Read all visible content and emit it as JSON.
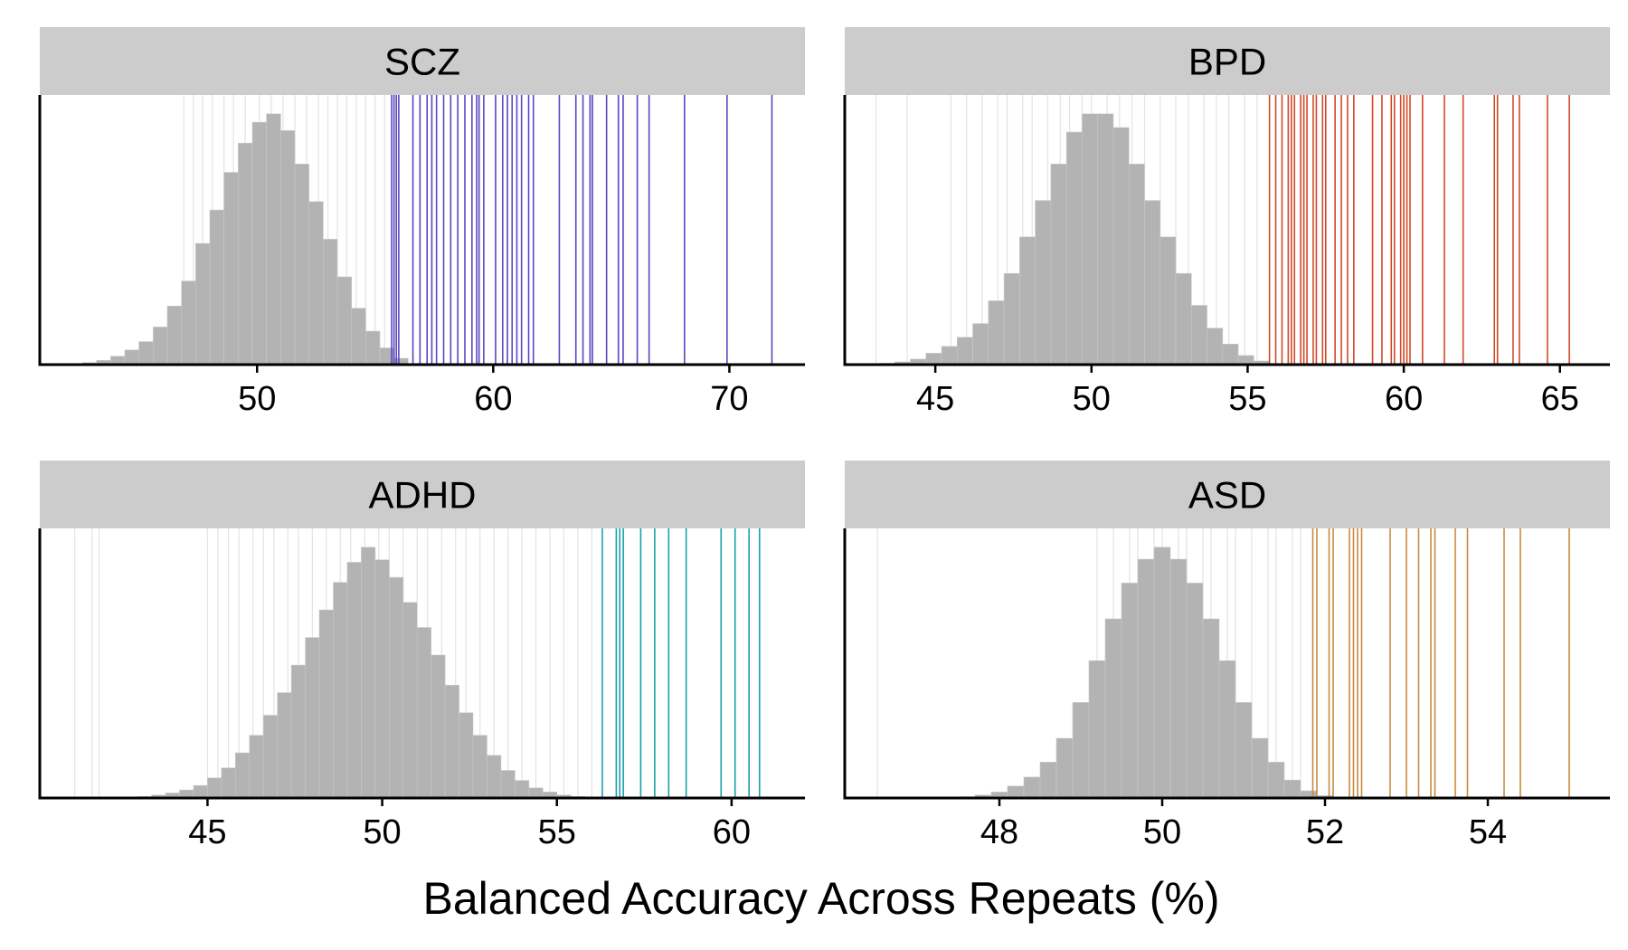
{
  "xlabel": "Balanced Accuracy Across Repeats (%)",
  "colors": {
    "strip_bg": "#cccccc",
    "histogram": "#b3b3b3",
    "null_lines": "#e3e3e3",
    "SCZ": "#5a46c2",
    "BPD": "#d04a2a",
    "ADHD": "#1aa0a8",
    "ASD": "#c88a3e"
  },
  "chart_data": [
    {
      "type": "bar",
      "panel": "SCZ",
      "title": "SCZ",
      "xlim": [
        40.8,
        73.2
      ],
      "xticks": [
        50,
        60,
        70
      ],
      "hist_bins": [
        42.0,
        42.6,
        43.2,
        43.8,
        44.4,
        45.0,
        45.6,
        46.2,
        46.8,
        47.4,
        48.0,
        48.6,
        49.2,
        49.8,
        50.4,
        51.0,
        51.6,
        52.2,
        52.8,
        53.4,
        54.0,
        54.6,
        55.2,
        55.8
      ],
      "hist_counts": [
        0.002,
        0.005,
        0.01,
        0.02,
        0.035,
        0.055,
        0.09,
        0.14,
        0.2,
        0.29,
        0.37,
        0.46,
        0.53,
        0.58,
        0.6,
        0.56,
        0.48,
        0.39,
        0.3,
        0.21,
        0.135,
        0.08,
        0.04,
        0.015
      ],
      "null_lines": [
        46.9,
        47.3,
        47.7,
        48.1,
        48.6,
        49.0,
        49.5,
        50.1,
        50.6,
        51.1,
        51.6,
        52.1,
        52.6,
        53.0,
        53.4,
        53.8,
        54.2,
        54.6,
        55.0,
        55.4
      ],
      "model_lines": [
        55.7,
        55.8,
        55.9,
        56.0,
        56.6,
        56.9,
        57.2,
        57.4,
        57.6,
        57.9,
        58.2,
        58.5,
        58.8,
        59.1,
        59.3,
        59.4,
        59.6,
        60.1,
        60.4,
        60.6,
        60.8,
        61.0,
        61.2,
        61.5,
        61.7,
        62.8,
        63.5,
        63.8,
        64.1,
        64.2,
        64.8,
        65.3,
        65.5,
        66.1,
        66.6,
        68.1,
        69.9,
        71.8
      ]
    },
    {
      "type": "bar",
      "panel": "BPD",
      "title": "BPD",
      "xlim": [
        42.1,
        66.6
      ],
      "xticks": [
        45,
        50,
        55,
        60,
        65
      ],
      "hist_bins": [
        43.2,
        43.7,
        44.2,
        44.7,
        45.2,
        45.7,
        46.2,
        46.7,
        47.2,
        47.7,
        48.2,
        48.7,
        49.2,
        49.7,
        50.2,
        50.7,
        51.2,
        51.7,
        52.2,
        52.7,
        53.2,
        53.7,
        54.2,
        54.7,
        55.2
      ],
      "hist_counts": [
        0.003,
        0.006,
        0.012,
        0.025,
        0.04,
        0.06,
        0.09,
        0.14,
        0.2,
        0.28,
        0.36,
        0.44,
        0.51,
        0.55,
        0.55,
        0.52,
        0.44,
        0.36,
        0.28,
        0.2,
        0.13,
        0.08,
        0.045,
        0.02,
        0.008
      ],
      "null_lines": [
        43.1,
        44.1,
        45.5,
        46.0,
        46.5,
        47.0,
        47.3,
        47.8,
        48.1,
        48.6,
        49.0,
        49.3,
        49.7,
        50.0,
        50.5,
        50.9,
        51.3,
        51.7,
        52.2,
        52.7,
        53.1,
        53.6,
        54.0,
        54.4,
        54.9,
        55.3
      ],
      "model_lines": [
        55.7,
        55.9,
        56.1,
        56.3,
        56.4,
        56.5,
        56.7,
        56.8,
        56.9,
        57.1,
        57.2,
        57.4,
        57.5,
        57.8,
        58.0,
        58.2,
        58.4,
        59.0,
        59.3,
        59.6,
        59.7,
        59.9,
        60.0,
        60.1,
        60.2,
        60.6,
        61.3,
        61.9,
        62.9,
        63.0,
        63.5,
        63.7,
        64.6,
        65.3
      ]
    },
    {
      "type": "bar",
      "panel": "ADHD",
      "title": "ADHD",
      "xlim": [
        40.2,
        62.1
      ],
      "xticks": [
        45,
        50,
        55,
        60
      ],
      "hist_bins": [
        43.0,
        43.4,
        43.8,
        44.2,
        44.6,
        45.0,
        45.4,
        45.8,
        46.2,
        46.6,
        47.0,
        47.4,
        47.8,
        48.2,
        48.6,
        49.0,
        49.4,
        49.8,
        50.2,
        50.6,
        51.0,
        51.4,
        51.8,
        52.2,
        52.6,
        53.0,
        53.4,
        53.8,
        54.2,
        54.6,
        55.0,
        55.4,
        55.8
      ],
      "hist_counts": [
        0.003,
        0.006,
        0.01,
        0.016,
        0.025,
        0.04,
        0.06,
        0.09,
        0.125,
        0.165,
        0.21,
        0.265,
        0.32,
        0.375,
        0.43,
        0.47,
        0.5,
        0.475,
        0.44,
        0.39,
        0.34,
        0.285,
        0.225,
        0.17,
        0.125,
        0.085,
        0.055,
        0.035,
        0.02,
        0.012,
        0.006,
        0.003,
        0.001
      ],
      "null_lines": [
        41.2,
        41.7,
        41.9,
        45.0,
        45.3,
        45.6,
        45.9,
        46.3,
        46.6,
        46.9,
        47.3,
        47.6,
        48.0,
        48.4,
        48.8,
        49.1,
        49.5,
        49.9,
        50.2,
        50.6,
        51.0,
        51.3,
        51.7,
        52.1,
        52.4,
        52.8,
        53.2,
        53.6,
        54.0,
        54.4,
        54.8,
        55.2,
        55.6,
        56.0
      ],
      "model_lines": [
        56.3,
        56.7,
        56.8,
        56.9,
        57.4,
        57.8,
        58.2,
        58.7,
        59.7,
        60.1,
        60.5,
        60.8
      ]
    },
    {
      "type": "bar",
      "panel": "ASD",
      "title": "ASD",
      "xlim": [
        46.1,
        55.5
      ],
      "xticks": [
        48,
        50,
        52,
        54
      ],
      "hist_bins": [
        47.5,
        47.7,
        47.9,
        48.1,
        48.3,
        48.5,
        48.7,
        48.9,
        49.1,
        49.3,
        49.5,
        49.7,
        49.9,
        50.1,
        50.3,
        50.5,
        50.7,
        50.9,
        51.1,
        51.3,
        51.5,
        51.7,
        51.9,
        52.1
      ],
      "hist_counts": [
        0.002,
        0.005,
        0.01,
        0.02,
        0.035,
        0.06,
        0.1,
        0.16,
        0.23,
        0.3,
        0.36,
        0.4,
        0.42,
        0.4,
        0.36,
        0.3,
        0.23,
        0.16,
        0.1,
        0.06,
        0.03,
        0.012,
        0.004,
        0.001
      ],
      "null_lines": [
        46.5,
        49.2,
        49.4,
        49.6,
        49.7,
        49.9,
        50.0,
        50.2,
        50.3,
        50.5,
        50.6,
        50.8,
        50.9,
        51.1,
        51.3,
        51.4,
        51.6,
        51.7
      ],
      "model_lines": [
        51.85,
        51.9,
        52.05,
        52.1,
        52.3,
        52.35,
        52.4,
        52.45,
        52.8,
        53.0,
        53.15,
        53.3,
        53.35,
        53.6,
        53.75,
        54.2,
        54.4,
        55.0
      ]
    }
  ]
}
